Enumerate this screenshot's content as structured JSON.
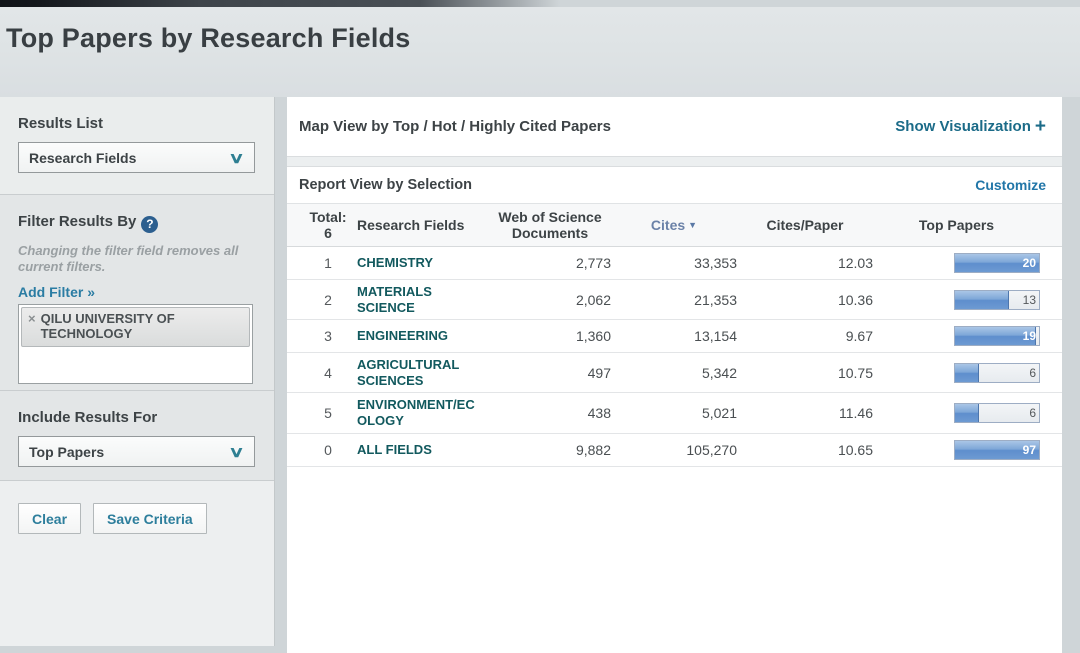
{
  "page": {
    "title": "Top Papers by Research Fields"
  },
  "sidebar": {
    "results_list": {
      "label": "Results List",
      "selected": "Research Fields"
    },
    "filter": {
      "label": "Filter Results By",
      "help_glyph": "?",
      "note": "Changing the filter field removes all current filters.",
      "add_filter": "Add Filter »",
      "tag": {
        "remove_glyph": "×",
        "label": "QILU UNIVERSITY OF TECHNOLOGY"
      }
    },
    "include_results": {
      "label": "Include Results For",
      "selected": "Top Papers"
    },
    "buttons": {
      "clear": "Clear",
      "save": "Save Criteria"
    }
  },
  "main": {
    "map_view": {
      "title": "Map View by Top / Hot / Highly Cited Papers",
      "action": "Show Visualization",
      "action_glyph": "+"
    },
    "report_view": {
      "title": "Report View by Selection",
      "action": "Customize"
    }
  },
  "table": {
    "total_label": "Total:",
    "total_value": "6",
    "headers": {
      "field": "Research Fields",
      "documents": "Web of Science Documents",
      "cites": "Cites",
      "sort_glyph": "▼",
      "cites_per_paper": "Cites/Paper",
      "top_papers": "Top Papers"
    },
    "rows": [
      {
        "rank": "1",
        "field": "CHEMISTRY",
        "documents": "2,773",
        "cites": "33,353",
        "cites_per_paper": "12.03",
        "top_papers": "20",
        "bar_pct": 100
      },
      {
        "rank": "2",
        "field": "MATERIALS SCIENCE",
        "documents": "2,062",
        "cites": "21,353",
        "cites_per_paper": "10.36",
        "top_papers": "13",
        "bar_pct": 64
      },
      {
        "rank": "3",
        "field": "ENGINEERING",
        "documents": "1,360",
        "cites": "13,154",
        "cites_per_paper": "9.67",
        "top_papers": "19",
        "bar_pct": 97
      },
      {
        "rank": "4",
        "field": "AGRICULTURAL SCIENCES",
        "documents": "497",
        "cites": "5,342",
        "cites_per_paper": "10.75",
        "top_papers": "6",
        "bar_pct": 29
      },
      {
        "rank": "5",
        "field": "ENVIRONMENT/ECOLOGY",
        "documents": "438",
        "cites": "5,021",
        "cites_per_paper": "11.46",
        "top_papers": "6",
        "bar_pct": 29
      },
      {
        "rank": "0",
        "field": "ALL FIELDS",
        "documents": "9,882",
        "cites": "105,270",
        "cites_per_paper": "10.65",
        "top_papers": "97",
        "bar_pct": 100
      }
    ]
  },
  "colors": {
    "accent_teal": "#1b6b88",
    "accent_blue": "#2176a8",
    "field_link": "#12595e",
    "bar_blue": "#6d9ad2",
    "header_bg": "#dde2e4"
  }
}
